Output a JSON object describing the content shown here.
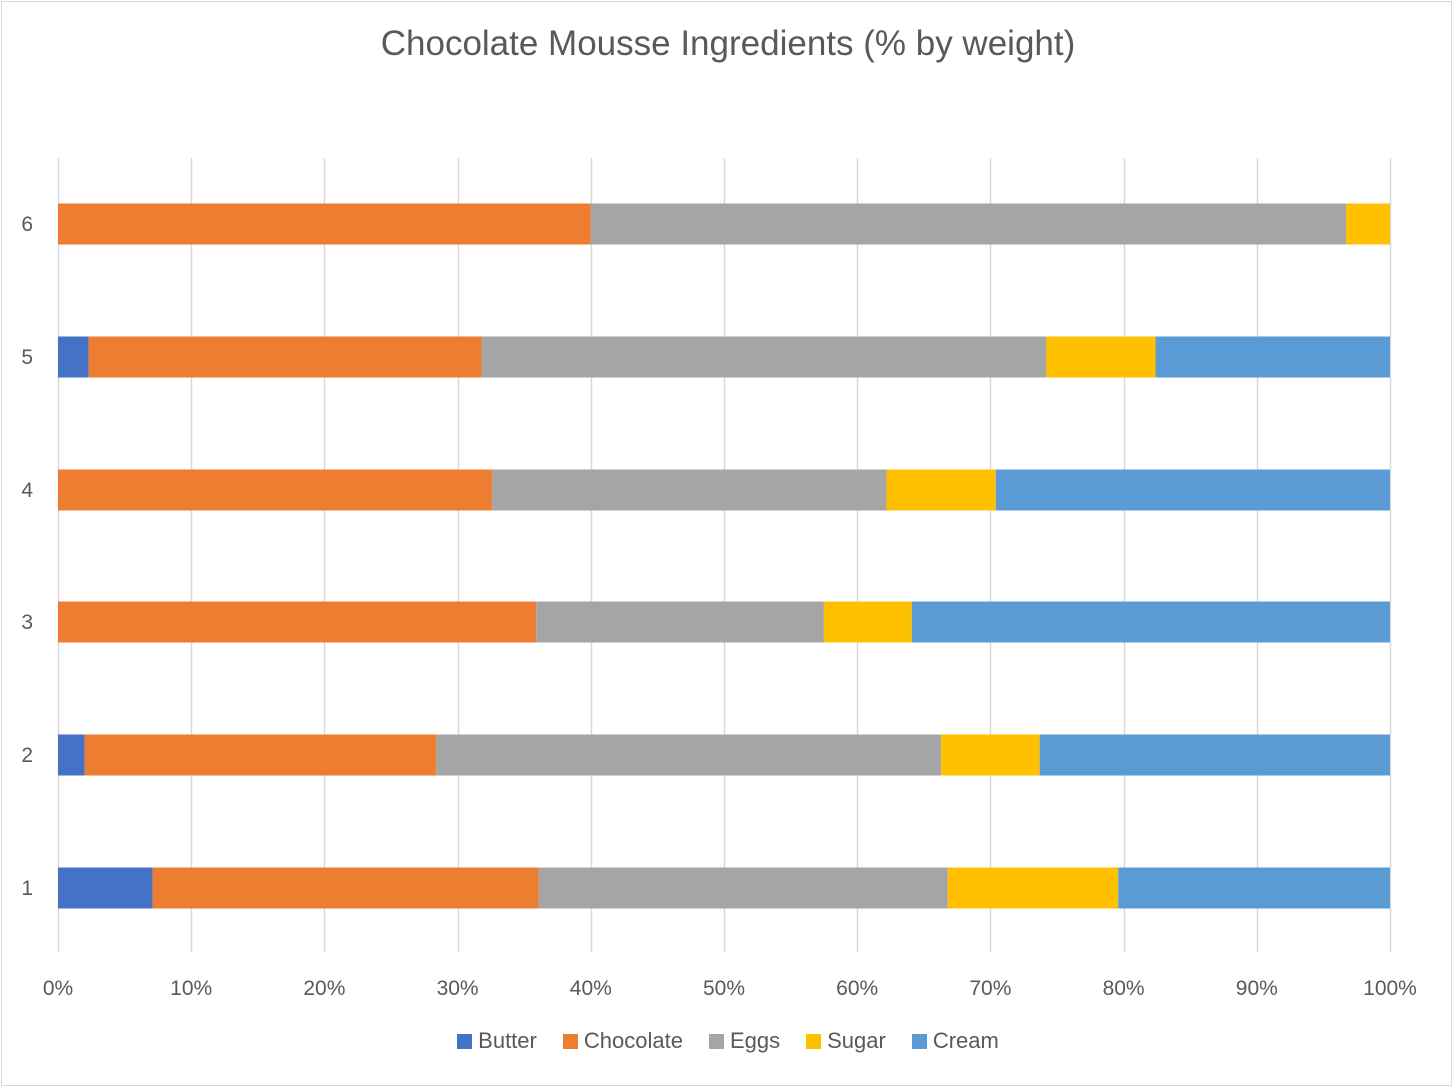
{
  "chart_data": {
    "type": "bar",
    "orientation": "horizontal",
    "stacked": "percent",
    "title": "Chocolate Mousse Ingredients (% by weight)",
    "xlabel": "",
    "ylabel": "",
    "categories": [
      "1",
      "2",
      "3",
      "4",
      "5",
      "6"
    ],
    "xlim": [
      0,
      100
    ],
    "x_ticks": [
      "0%",
      "10%",
      "20%",
      "30%",
      "40%",
      "50%",
      "60%",
      "70%",
      "80%",
      "90%",
      "100%"
    ],
    "grid": "vertical",
    "legend_position": "bottom",
    "series": [
      {
        "name": "Butter",
        "color": "#4472C4",
        "values": [
          7.1,
          2.0,
          0,
          0,
          2.3,
          0
        ]
      },
      {
        "name": "Chocolate",
        "color": "#ED7D31",
        "values": [
          29.0,
          26.4,
          35.9,
          32.6,
          29.5,
          40.0
        ]
      },
      {
        "name": "Eggs",
        "color": "#A5A5A5",
        "values": [
          30.7,
          37.9,
          21.6,
          29.6,
          42.4,
          56.7
        ]
      },
      {
        "name": "Sugar",
        "color": "#FFC000",
        "values": [
          12.8,
          7.4,
          6.6,
          8.2,
          8.2,
          3.3
        ]
      },
      {
        "name": "Cream",
        "color": "#5B9BD5",
        "values": [
          20.4,
          26.3,
          35.9,
          29.6,
          17.6,
          0
        ]
      }
    ]
  }
}
